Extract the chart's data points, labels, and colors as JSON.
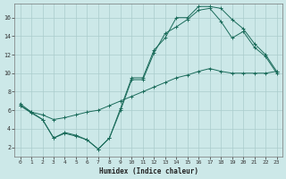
{
  "xlabel": "Humidex (Indice chaleur)",
  "bg_color": "#cce8e8",
  "grid_color": "#aacccc",
  "line_color": "#1a6b5a",
  "line_upper": {
    "x": [
      0,
      1,
      2,
      3,
      4,
      5,
      6,
      7,
      8,
      9,
      10,
      11,
      12,
      13,
      14,
      15,
      16,
      17,
      18,
      19,
      20,
      21,
      22,
      23
    ],
    "y": [
      6.7,
      5.8,
      5.0,
      3.0,
      3.6,
      3.3,
      2.8,
      1.8,
      3.0,
      6.2,
      9.5,
      9.5,
      12.5,
      13.8,
      16.0,
      16.0,
      17.2,
      17.2,
      17.0,
      15.8,
      14.8,
      13.2,
      12.0,
      10.2
    ]
  },
  "line_mid": {
    "x": [
      0,
      1,
      2,
      3,
      4,
      5,
      6,
      7,
      8,
      9,
      10,
      11,
      12,
      13,
      14,
      15,
      16,
      17,
      18,
      19,
      20,
      21,
      22,
      23
    ],
    "y": [
      6.5,
      5.7,
      5.0,
      3.0,
      3.5,
      3.2,
      2.8,
      1.8,
      3.0,
      6.0,
      9.3,
      9.3,
      12.2,
      14.3,
      15.0,
      15.8,
      16.8,
      17.0,
      15.6,
      13.8,
      14.5,
      12.8,
      11.8,
      10.0
    ]
  },
  "line_low": {
    "x": [
      0,
      1,
      2,
      3,
      4,
      5,
      6,
      7,
      8,
      9,
      10,
      11,
      12,
      13,
      14,
      15,
      16,
      17,
      18,
      19,
      20,
      21,
      22,
      23
    ],
    "y": [
      6.5,
      5.8,
      5.5,
      5.0,
      5.2,
      5.5,
      5.8,
      6.0,
      6.5,
      7.0,
      7.5,
      8.0,
      8.5,
      9.0,
      9.5,
      9.8,
      10.2,
      10.5,
      10.2,
      10.0,
      10.0,
      10.0,
      10.0,
      10.2
    ]
  },
  "ylim": [
    1,
    17.5
  ],
  "xlim": [
    -0.5,
    23.5
  ],
  "yticks": [
    2,
    4,
    6,
    8,
    10,
    12,
    14,
    16
  ],
  "xticks": [
    0,
    1,
    2,
    3,
    4,
    5,
    6,
    7,
    8,
    9,
    10,
    11,
    12,
    13,
    14,
    15,
    16,
    17,
    18,
    19,
    20,
    21,
    22,
    23
  ],
  "tick_fontsize": 4.5,
  "xlabel_fontsize": 5.5
}
